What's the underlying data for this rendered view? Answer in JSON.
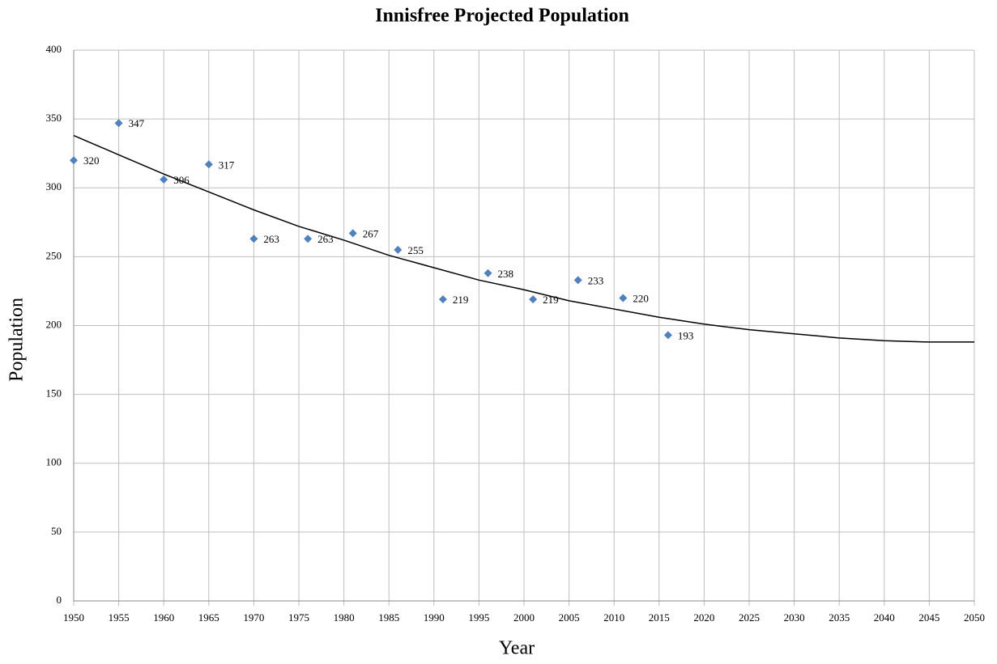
{
  "chart_data": {
    "type": "scatter",
    "title": "Innisfree Projected Population",
    "x_label": "Year",
    "y_label": "Population",
    "x": [
      1950,
      1955,
      1960,
      1965,
      1970,
      1976,
      1981,
      1986,
      1991,
      1996,
      2001,
      2006,
      2011,
      2016
    ],
    "values": [
      320,
      347,
      306,
      317,
      263,
      263,
      267,
      255,
      219,
      238,
      219,
      233,
      220,
      193
    ],
    "color": "#4f81bd",
    "trendline": {
      "color": "#000000",
      "x": [
        1950,
        1955,
        1960,
        1965,
        1970,
        1975,
        1980,
        1985,
        1990,
        1995,
        2000,
        2005,
        2010,
        2015,
        2020,
        2025,
        2030,
        2035,
        2040,
        2045,
        2050
      ],
      "values": [
        338,
        324,
        310,
        297,
        284,
        272,
        262,
        251,
        242,
        233,
        226,
        218,
        212,
        206,
        201,
        197,
        194,
        191,
        189,
        188,
        188
      ]
    },
    "xlim": [
      1950,
      2050
    ],
    "xticks": [
      1950,
      1955,
      1960,
      1965,
      1970,
      1975,
      1980,
      1985,
      1990,
      1995,
      2000,
      2005,
      2010,
      2015,
      2020,
      2025,
      2030,
      2035,
      2040,
      2045,
      2050
    ],
    "ylim": [
      0,
      400
    ],
    "yticks": [
      0,
      50,
      100,
      150,
      200,
      250,
      300,
      350,
      400
    ],
    "grid": true
  }
}
